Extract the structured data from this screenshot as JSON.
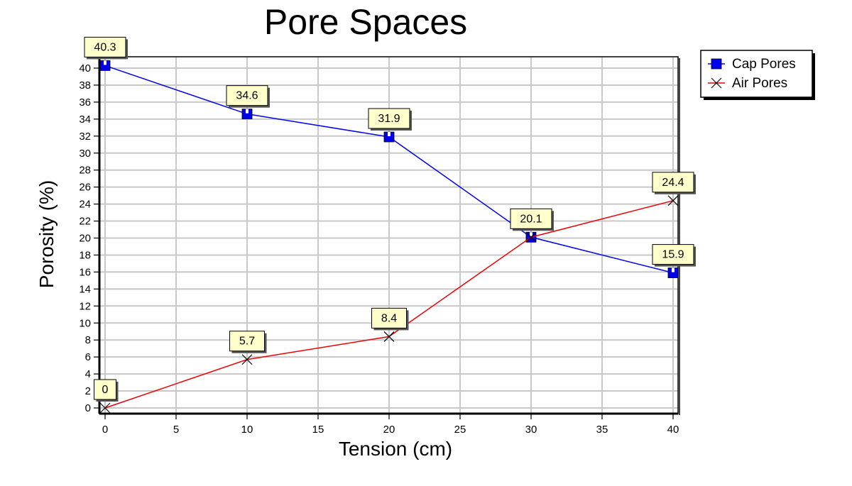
{
  "chart_data": {
    "type": "line",
    "title": "Pore Spaces",
    "xlabel": "Tension (cm)",
    "ylabel": "Porosity (%)",
    "xlim": [
      0,
      40
    ],
    "ylim": [
      0,
      40
    ],
    "x_ticks": [
      0,
      5,
      10,
      15,
      20,
      25,
      30,
      35,
      40
    ],
    "y_ticks": [
      0,
      2,
      4,
      6,
      8,
      10,
      12,
      14,
      16,
      18,
      20,
      22,
      24,
      26,
      28,
      30,
      32,
      34,
      36,
      38,
      40
    ],
    "grid": true,
    "legend_position": "top-right",
    "series": [
      {
        "name": "Cap Pores",
        "color": "#0000ee",
        "marker": "square",
        "x": [
          0,
          10,
          20,
          30,
          40
        ],
        "values": [
          40.3,
          34.6,
          31.9,
          20.1,
          15.9
        ],
        "labels": [
          "40.3",
          "34.6",
          "31.9",
          "20.1",
          "15.9"
        ]
      },
      {
        "name": "Air Pores",
        "color": "#ee0000",
        "marker": "x",
        "x": [
          0,
          10,
          20,
          30,
          40
        ],
        "values": [
          0,
          5.7,
          8.4,
          20.1,
          24.4
        ],
        "labels": [
          "0",
          "5.7",
          "8.4",
          "",
          "24.4"
        ]
      }
    ]
  }
}
